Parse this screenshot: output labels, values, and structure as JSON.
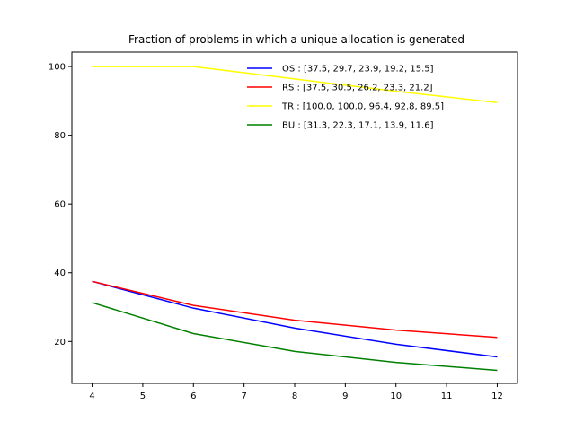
{
  "chart_data": {
    "type": "line",
    "title": "Fraction of problems in which a unique allocation is generated",
    "xlabel": "",
    "ylabel": "",
    "x": [
      4,
      6,
      8,
      10,
      12
    ],
    "xlim": [
      3.6,
      12.4
    ],
    "ylim": [
      7.8,
      104.2
    ],
    "xticks": [
      4,
      5,
      6,
      7,
      8,
      9,
      10,
      11,
      12
    ],
    "yticks": [
      20,
      40,
      60,
      80,
      100
    ],
    "grid": false,
    "legend_position": "top-right",
    "series": [
      {
        "name": "OS : [37.5, 29.7, 23.9, 19.2, 15.5]",
        "color": "#0000ff",
        "values": [
          37.5,
          29.7,
          23.9,
          19.2,
          15.5
        ]
      },
      {
        "name": "RS : [37.5, 30.5, 26.2, 23.3, 21.2]",
        "color": "#ff0000",
        "values": [
          37.5,
          30.5,
          26.2,
          23.3,
          21.2
        ]
      },
      {
        "name": "TR : [100.0, 100.0, 96.4, 92.8, 89.5]",
        "color": "#ffff00",
        "values": [
          100.0,
          100.0,
          96.4,
          92.8,
          89.5
        ]
      },
      {
        "name": "BU : [31.3, 22.3, 17.1, 13.9, 11.6]",
        "color": "#008000",
        "values": [
          31.3,
          22.3,
          17.1,
          13.9,
          11.6
        ]
      }
    ]
  }
}
